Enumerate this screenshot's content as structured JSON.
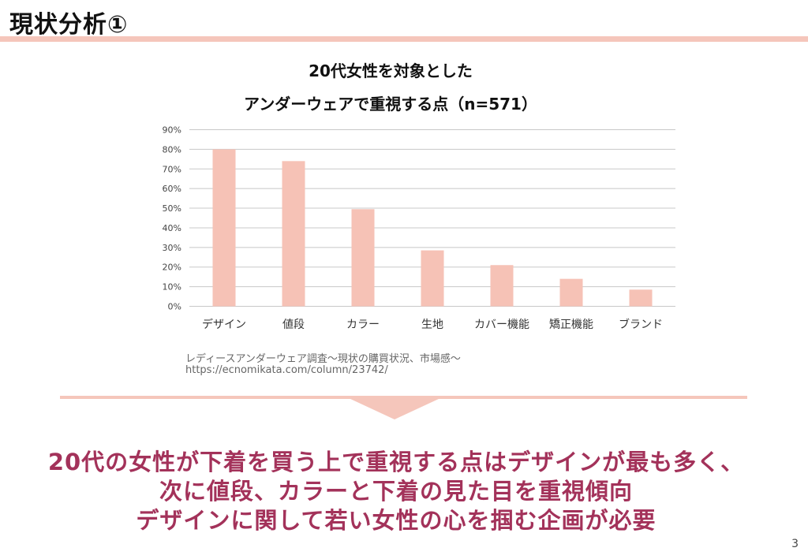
{
  "slide": {
    "title": "現状分析①",
    "page_number": "3"
  },
  "source": {
    "line1": "レディースアンダーウェア調査〜現状の購買状況、市場感〜",
    "line2": "https://ecnomikata.com/column/23742/"
  },
  "conclusion": {
    "line1": "20代の女性が下着を買う上で重視する点はデザインが最も多く、",
    "line2": "次に値段、カラーと下着の見た目を重視傾向",
    "line3": "デザインに関して若い女性の心を掴む企画が必要"
  },
  "colors": {
    "bar": "#f6c2b6",
    "accent_band": "#f5c6bb",
    "conclusion_text": "#a3325a",
    "grid": "#c8c8c8"
  },
  "chart_data": {
    "type": "bar",
    "title_line1": "20代女性を対象とした",
    "title_line2": "アンダーウェアで重視する点（n=571）",
    "categories": [
      "デザイン",
      "値段",
      "カラー",
      "生地",
      "カバー機能",
      "矯正機能",
      "ブランド"
    ],
    "values": [
      80,
      74,
      49.5,
      28.5,
      21,
      14,
      8.5
    ],
    "y_ticks": [
      "0%",
      "10%",
      "20%",
      "30%",
      "40%",
      "50%",
      "60%",
      "70%",
      "80%",
      "90%"
    ],
    "ylim": [
      0,
      90
    ],
    "unit": "%",
    "grid": true,
    "legend": "none"
  }
}
